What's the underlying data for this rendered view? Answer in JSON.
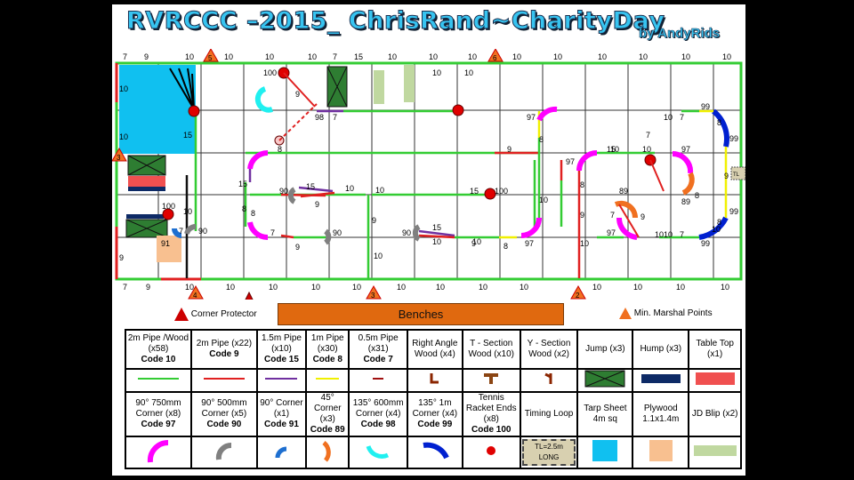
{
  "title": "RVRCCC –2015_ ChrisRand~CharityDay",
  "byline": "by AndyRids",
  "top_labels": [
    "7",
    "9",
    "10",
    "10",
    "10",
    "10",
    "7",
    "15",
    "10",
    "10",
    "10",
    "10",
    "10",
    "10",
    "10",
    "10",
    "10",
    "10",
    "10",
    "10"
  ],
  "bottom_labels": [
    "7",
    "9",
    "10",
    "10",
    "10",
    "10",
    "10",
    "10",
    "10",
    "10",
    "10",
    "10",
    "10",
    "10",
    "10"
  ],
  "track_labels": {
    "l_top": "10",
    "l_mid": "10",
    "l_15": "15",
    "l_10b": "10",
    "l_100a": "100",
    "l_91": "91",
    "l_7a": "7",
    "l_90a": "90",
    "l_9a": "9",
    "l_100b": "100",
    "l_9b": "9",
    "l_98": "98",
    "l_7b": "7",
    "l_8a": "8",
    "l_15b": "15",
    "l_90b": "90",
    "l_15c": "15",
    "l_9c": "9",
    "l_10c": "10",
    "l_8b": "8",
    "l_7c": "7",
    "l_90c": "90",
    "l_9d": "9",
    "l_10d": "10",
    "l_90d": "90",
    "l_15d": "15",
    "l_10e": "10",
    "l_8c": "8",
    "l_15e": "15",
    "l_100c": "100",
    "l_10f": "10",
    "l_9e": "9",
    "l_97a": "97",
    "l_8d": "8",
    "l_10g": "10",
    "l_97b": "97",
    "l_97c": "97",
    "l_8e": "8",
    "l_9f": "9",
    "l_15f": "15",
    "l_10h": "10",
    "l_97d": "97",
    "l_89a": "89",
    "l_7d": "7",
    "l_9g": "9",
    "l_97e": "97",
    "l_10i": "10",
    "l_89b": "89",
    "l_8f": "8",
    "l_10j": "10",
    "l_7e": "7",
    "l_99a": "99",
    "l_8g": "8",
    "l_99b": "99",
    "l_9h": "9",
    "l_99c": "99",
    "l_8h": "8",
    "l_7f": "7",
    "l_99d": "99",
    "l_10k": "10",
    "l_10l": "10",
    "l_9i": "9",
    "l_10m": "10",
    "l_7g": "7",
    "l_8i": "8",
    "l_10n": "10",
    "l_8j": "8",
    "l_10o": "10",
    "l_9j": "9",
    "l_10p": "10",
    "l_10q": "10"
  },
  "marshal_numbers": [
    "5",
    "6",
    "3",
    "4",
    "3",
    "2",
    "1"
  ],
  "timing_loop": "TL",
  "benches": "Benches",
  "corner_protector": "Corner Protector",
  "marshal_points": "Min. Marshal Points",
  "legend": {
    "row1": [
      {
        "name": "2m Pipe /Wood (x58)",
        "code": "Code 10",
        "symbol": "green-line",
        "color": "#33cc33"
      },
      {
        "name": "2m Pipe (x22)",
        "code": "Code 9",
        "symbol": "red-line",
        "color": "#e02020"
      },
      {
        "name": "1.5m Pipe (x10)",
        "code": "Code 15",
        "symbol": "purple-line",
        "color": "#7030a0"
      },
      {
        "name": "1m Pipe (x30)",
        "code": "Code 8",
        "symbol": "yellow-line",
        "color": "#f0f000"
      },
      {
        "name": "0.5m Pipe (x31)",
        "code": "Code 7",
        "symbol": "darkred-line",
        "color": "#a01010"
      },
      {
        "name": "Right Angle Wood (x4)",
        "code": "",
        "symbol": "right-angle",
        "color": "#8b2500"
      },
      {
        "name": "T - Section Wood (x10)",
        "code": "",
        "symbol": "t-section",
        "color": "#8b4513"
      },
      {
        "name": "Y - Section Wood (x2)",
        "code": "",
        "symbol": "y-section",
        "color": "#8b2500"
      },
      {
        "name": "Jump (x3)",
        "code": "",
        "symbol": "jump",
        "color": "#2e7d32"
      },
      {
        "name": "Hump (x3)",
        "code": "",
        "symbol": "hump",
        "color": "#0d2a66"
      },
      {
        "name": "Table Top (x1)",
        "code": "",
        "symbol": "table-top",
        "color": "#f05050"
      }
    ],
    "row2": [
      {
        "name": "90° 750mm Corner (x8)",
        "code": "Code 97",
        "symbol": "magenta-arc",
        "color": "#ff00ff"
      },
      {
        "name": "90° 500mm Corner (x5)",
        "code": "Code 90",
        "symbol": "grey-arc",
        "color": "#808080"
      },
      {
        "name": "90° Corner (x1)",
        "code": "Code 91",
        "symbol": "blue-arc",
        "color": "#1e6fd0"
      },
      {
        "name": "45° Corner (x3)",
        "code": "Code 89",
        "symbol": "orange-arc",
        "color": "#f07020"
      },
      {
        "name": "135° 600mm Corner (x4)",
        "code": "Code 98",
        "symbol": "cyan-arc",
        "color": "#20f0f0"
      },
      {
        "name": "135° 1m Corner (x4)",
        "code": "Code 99",
        "symbol": "navy-arc",
        "color": "#0020d0"
      },
      {
        "name": "Tennis Racket Ends (x8)",
        "code": "Code 100",
        "symbol": "red-dot",
        "color": "#e00000"
      },
      {
        "name": "Timing Loop",
        "code": "",
        "symbol": "timing-loop",
        "color": "#d8d0b0",
        "text": "TL=2.5m LONG"
      },
      {
        "name": "Tarp Sheet 4m sq",
        "code": "",
        "symbol": "tarp",
        "color": "#10c0f0"
      },
      {
        "name": "Plywood 1.1x1.4m",
        "code": "",
        "symbol": "plywood",
        "color": "#f8c090"
      },
      {
        "name": "JD Blip (x2)",
        "code": "",
        "symbol": "jd-blip",
        "color": "#c0d8a0"
      }
    ]
  }
}
